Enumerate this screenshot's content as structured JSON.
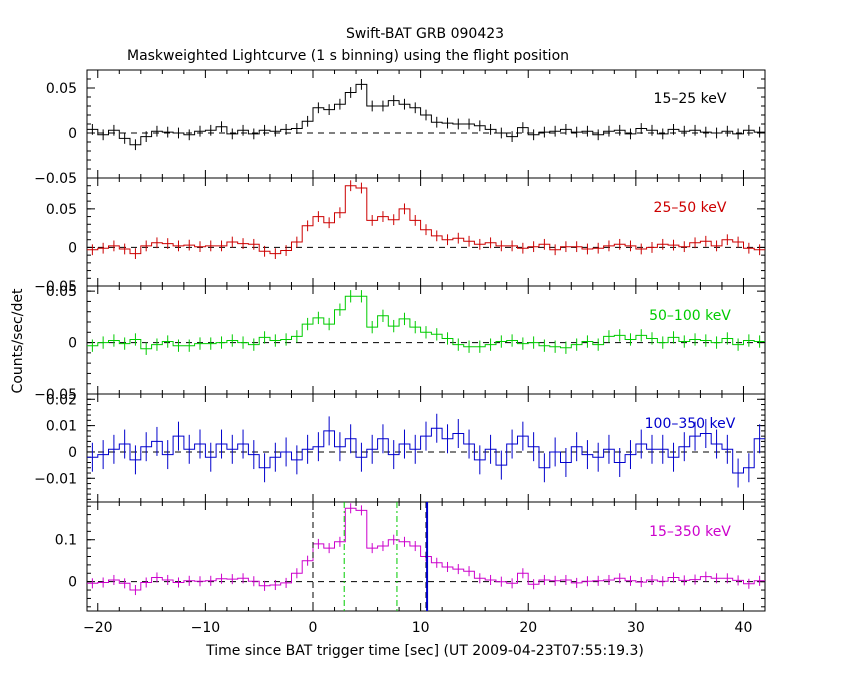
{
  "header": {
    "title": "Swift-BAT GRB 090423",
    "subtitle": "Maskweighted Lightcurve (1 s binning) using the flight position"
  },
  "axes": {
    "xlabel": "Time since BAT trigger time [sec] (UT 2009-04-23T07:55:19.3)",
    "ylabel": "Counts/sec/det",
    "xlim": [
      -21,
      42
    ],
    "xticks": [
      -20,
      -10,
      0,
      10,
      20,
      30,
      40
    ]
  },
  "colors": {
    "black": "#000000",
    "red": "#cc0000",
    "green": "#00cc00",
    "blue": "#0000cc",
    "magenta": "#cc00cc"
  },
  "chart_data": {
    "type": "line",
    "style": "step-with-error-bars",
    "x": [
      -20.5,
      -19.5,
      -18.5,
      -17.5,
      -16.5,
      -15.5,
      -14.5,
      -13.5,
      -12.5,
      -11.5,
      -10.5,
      -9.5,
      -8.5,
      -7.5,
      -6.5,
      -5.5,
      -4.5,
      -3.5,
      -2.5,
      -1.5,
      -0.5,
      0.5,
      1.5,
      2.5,
      3.5,
      4.5,
      5.5,
      6.5,
      7.5,
      8.5,
      9.5,
      10.5,
      11.5,
      12.5,
      13.5,
      14.5,
      15.5,
      16.5,
      17.5,
      18.5,
      19.5,
      20.5,
      21.5,
      22.5,
      23.5,
      24.5,
      25.5,
      26.5,
      27.5,
      28.5,
      29.5,
      30.5,
      31.5,
      32.5,
      33.5,
      34.5,
      35.5,
      36.5,
      37.5,
      38.5,
      39.5,
      40.5,
      41.5
    ],
    "panels": [
      {
        "name": "15-25 keV",
        "label": "15–25 keV",
        "color": "#000000",
        "ylim": [
          -0.05,
          0.07
        ],
        "yticks": [
          -0.05,
          0,
          0.05
        ],
        "ytick_labels": [
          "−0.05",
          "0",
          "0.05"
        ],
        "err": 0.006,
        "values": [
          0.004,
          -0.002,
          0.003,
          -0.006,
          -0.013,
          -0.004,
          0.002,
          0.001,
          0.0,
          -0.002,
          0.002,
          0.003,
          0.007,
          -0.001,
          0.003,
          -0.001,
          0.003,
          0.002,
          0.004,
          0.005,
          0.013,
          0.028,
          0.026,
          0.032,
          0.045,
          0.054,
          0.03,
          0.03,
          0.036,
          0.032,
          0.028,
          0.02,
          0.012,
          0.011,
          0.01,
          0.01,
          0.008,
          0.004,
          0.0,
          -0.004,
          0.006,
          -0.002,
          0.001,
          0.002,
          0.004,
          0.001,
          0.002,
          -0.002,
          0.002,
          0.003,
          -0.001,
          0.005,
          0.003,
          -0.001,
          0.004,
          0.002,
          0.003,
          0.001,
          0.0,
          0.002,
          -0.001,
          0.003,
          0.001
        ]
      },
      {
        "name": "25-50 keV",
        "label": "25–50 keV",
        "color": "#cc0000",
        "ylim": [
          -0.05,
          0.09
        ],
        "yticks": [
          -0.05,
          0,
          0.05
        ],
        "ytick_labels": [
          "−0.05",
          "0",
          "0.05"
        ],
        "err": 0.007,
        "values": [
          -0.003,
          -0.001,
          0.002,
          -0.002,
          -0.008,
          0.002,
          0.006,
          0.005,
          0.002,
          0.003,
          0.001,
          0.002,
          0.002,
          0.007,
          0.005,
          0.004,
          -0.005,
          -0.008,
          -0.004,
          0.007,
          0.028,
          0.04,
          0.032,
          0.045,
          0.08,
          0.077,
          0.035,
          0.04,
          0.036,
          0.05,
          0.035,
          0.023,
          0.015,
          0.01,
          0.012,
          0.008,
          0.004,
          0.006,
          0.002,
          0.002,
          -0.001,
          0.001,
          0.004,
          -0.003,
          0.001,
          0.001,
          -0.002,
          -0.001,
          0.002,
          0.004,
          0.002,
          -0.002,
          0.0,
          0.004,
          0.003,
          0.001,
          0.006,
          0.008,
          0.002,
          0.01,
          0.007,
          -0.001,
          -0.003
        ]
      },
      {
        "name": "50-100 keV",
        "label": "50–100 keV",
        "color": "#00cc00",
        "ylim": [
          -0.05,
          0.055
        ],
        "yticks": [
          -0.05,
          0,
          0.05
        ],
        "ytick_labels": [
          "−0.05",
          "0",
          "0.05"
        ],
        "err": 0.006,
        "values": [
          -0.003,
          0.0,
          0.002,
          -0.001,
          0.003,
          -0.006,
          -0.002,
          0.001,
          -0.003,
          -0.003,
          -0.001,
          -0.001,
          0.0,
          0.002,
          0.0,
          -0.002,
          0.005,
          0.002,
          0.003,
          0.006,
          0.018,
          0.024,
          0.018,
          0.032,
          0.045,
          0.045,
          0.015,
          0.026,
          0.016,
          0.023,
          0.015,
          0.01,
          0.008,
          0.004,
          -0.002,
          -0.004,
          -0.004,
          -0.002,
          0.001,
          0.002,
          -0.001,
          0.0,
          -0.003,
          -0.004,
          -0.005,
          -0.002,
          0.001,
          -0.002,
          0.006,
          0.007,
          0.003,
          0.007,
          0.004,
          0.0,
          0.005,
          0.001,
          0.003,
          0.002,
          0.0,
          0.004,
          -0.002,
          0.002,
          0.001
        ]
      },
      {
        "name": "100-350 keV",
        "label": "100–350 keV",
        "color": "#0000cc",
        "ylim": [
          -0.019,
          0.022
        ],
        "yticks": [
          -0.01,
          0,
          0.01,
          0.02
        ],
        "ytick_labels": [
          "−0.01",
          "0",
          "0.01",
          "0.02"
        ],
        "err": 0.0055,
        "values": [
          -0.002,
          -0.001,
          0.001,
          0.003,
          -0.003,
          0.002,
          0.004,
          -0.001,
          0.006,
          0.001,
          0.003,
          -0.002,
          0.003,
          0.001,
          0.003,
          -0.001,
          -0.006,
          -0.002,
          0.0,
          -0.003,
          0.001,
          0.002,
          0.008,
          0.002,
          0.005,
          -0.002,
          0.001,
          0.005,
          -0.001,
          0.003,
          0.001,
          0.006,
          0.009,
          0.005,
          0.007,
          0.003,
          -0.003,
          0.001,
          -0.005,
          0.003,
          0.006,
          0.002,
          -0.006,
          0.0,
          -0.004,
          0.002,
          -0.001,
          -0.002,
          0.001,
          -0.004,
          -0.001,
          0.003,
          0.001,
          0.001,
          -0.002,
          0.002,
          0.006,
          0.007,
          0.003,
          0.001,
          -0.008,
          -0.006,
          0.005
        ]
      },
      {
        "name": "15-350 keV",
        "label": "15–350 keV",
        "color": "#cc00cc",
        "ylim": [
          -0.07,
          0.19
        ],
        "yticks": [
          0,
          0.1
        ],
        "ytick_labels": [
          "0",
          "0.1"
        ],
        "err": 0.012,
        "values": [
          -0.004,
          -0.002,
          0.004,
          -0.004,
          -0.02,
          -0.002,
          0.01,
          0.004,
          -0.002,
          0.002,
          0.001,
          0.002,
          0.007,
          0.006,
          0.008,
          0.001,
          -0.01,
          -0.008,
          -0.003,
          0.02,
          0.05,
          0.09,
          0.08,
          0.095,
          0.175,
          0.17,
          0.08,
          0.085,
          0.1,
          0.095,
          0.085,
          0.06,
          0.045,
          0.035,
          0.03,
          0.025,
          0.008,
          0.004,
          0.0,
          -0.004,
          0.02,
          -0.006,
          0.004,
          0.002,
          0.004,
          -0.003,
          0.001,
          0.002,
          0.004,
          0.008,
          0.002,
          -0.001,
          0.004,
          0.001,
          0.01,
          0.003,
          0.005,
          0.012,
          0.008,
          0.008,
          0.003,
          -0.005,
          0.002
        ]
      }
    ],
    "markers": [
      {
        "t": 0.0,
        "style": "dashed-black"
      },
      {
        "t": 2.9,
        "style": "dashdot-green"
      },
      {
        "t": 7.8,
        "style": "dashdot-green"
      },
      {
        "t": 10.5,
        "style": "dashed-black"
      },
      {
        "t": 10.6,
        "style": "solid-blue"
      }
    ]
  }
}
